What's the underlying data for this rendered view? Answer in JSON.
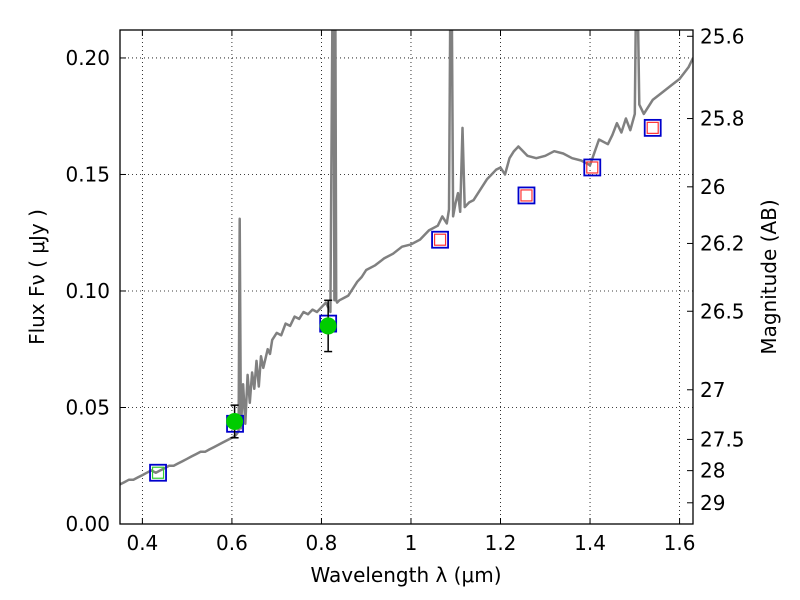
{
  "chart_data": {
    "type": "line",
    "xlabel": "Wavelength  λ (μm)",
    "ylabel": "Flux  Fν  ( μJy )",
    "ylabel_right": "Magnitude (AB)",
    "xlim": [
      0.35,
      1.63
    ],
    "ylim": [
      0.0,
      0.212
    ],
    "grid": true,
    "x_ticks": [
      0.4,
      0.6,
      0.8,
      1.0,
      1.2,
      1.4,
      1.6
    ],
    "x_tick_labels": [
      "0.4",
      "0.6",
      "0.8",
      "1",
      "1.2",
      "1.4",
      "1.6"
    ],
    "y_ticks": [
      0.0,
      0.05,
      0.1,
      0.15,
      0.2
    ],
    "y_tick_labels": [
      "0.00",
      "0.05",
      "0.10",
      "0.15",
      "0.20"
    ],
    "right_ticks": [
      {
        "label": "25.6",
        "flux": 0.2093
      },
      {
        "label": "25.8",
        "flux": 0.174
      },
      {
        "label": "26",
        "flux": 0.1447
      },
      {
        "label": "26.2",
        "flux": 0.1204
      },
      {
        "label": "26.5",
        "flux": 0.0913
      },
      {
        "label": "27",
        "flux": 0.0576
      },
      {
        "label": "27.5",
        "flux": 0.0363
      },
      {
        "label": "28",
        "flux": 0.0229
      },
      {
        "label": "29",
        "flux": 0.0091
      }
    ],
    "series": [
      {
        "style": "model-spectrum",
        "color": "#808080",
        "x": [
          0.35,
          0.36,
          0.37,
          0.38,
          0.39,
          0.4,
          0.41,
          0.42,
          0.43,
          0.44,
          0.45,
          0.46,
          0.47,
          0.48,
          0.49,
          0.5,
          0.51,
          0.52,
          0.53,
          0.54,
          0.55,
          0.56,
          0.57,
          0.58,
          0.59,
          0.6,
          0.608,
          0.612,
          0.615,
          0.6175,
          0.62,
          0.625,
          0.63,
          0.635,
          0.64,
          0.645,
          0.65,
          0.655,
          0.66,
          0.665,
          0.67,
          0.68,
          0.685,
          0.69,
          0.7,
          0.71,
          0.72,
          0.73,
          0.74,
          0.75,
          0.76,
          0.77,
          0.78,
          0.79,
          0.8,
          0.81,
          0.82,
          0.825,
          0.827,
          0.829,
          0.831,
          0.833,
          0.835,
          0.84,
          0.85,
          0.86,
          0.87,
          0.88,
          0.89,
          0.9,
          0.92,
          0.94,
          0.96,
          0.98,
          1.0,
          1.02,
          1.04,
          1.06,
          1.07,
          1.08,
          1.085,
          1.088,
          1.091,
          1.094,
          1.1,
          1.105,
          1.11,
          1.115,
          1.12,
          1.13,
          1.14,
          1.15,
          1.16,
          1.17,
          1.18,
          1.19,
          1.2,
          1.21,
          1.22,
          1.23,
          1.24,
          1.26,
          1.28,
          1.3,
          1.32,
          1.34,
          1.36,
          1.38,
          1.4,
          1.42,
          1.44,
          1.45,
          1.46,
          1.47,
          1.48,
          1.49,
          1.5,
          1.503,
          1.506,
          1.51,
          1.52,
          1.54,
          1.56,
          1.58,
          1.6,
          1.62,
          1.63
        ],
        "y": [
          0.017,
          0.018,
          0.019,
          0.019,
          0.02,
          0.021,
          0.022,
          0.023,
          0.022,
          0.023,
          0.024,
          0.025,
          0.025,
          0.026,
          0.027,
          0.028,
          0.029,
          0.03,
          0.031,
          0.031,
          0.032,
          0.033,
          0.034,
          0.035,
          0.036,
          0.037,
          0.038,
          0.039,
          0.04,
          0.131,
          0.041,
          0.06,
          0.043,
          0.064,
          0.052,
          0.065,
          0.058,
          0.07,
          0.059,
          0.072,
          0.067,
          0.075,
          0.073,
          0.079,
          0.082,
          0.081,
          0.086,
          0.085,
          0.089,
          0.088,
          0.091,
          0.09,
          0.092,
          0.091,
          0.093,
          0.095,
          0.091,
          0.23,
          0.23,
          0.096,
          0.23,
          0.096,
          0.095,
          0.096,
          0.097,
          0.098,
          0.101,
          0.104,
          0.106,
          0.109,
          0.111,
          0.114,
          0.116,
          0.119,
          0.12,
          0.122,
          0.126,
          0.128,
          0.132,
          0.129,
          0.135,
          0.23,
          0.23,
          0.132,
          0.138,
          0.142,
          0.134,
          0.17,
          0.136,
          0.138,
          0.139,
          0.142,
          0.145,
          0.148,
          0.15,
          0.152,
          0.153,
          0.15,
          0.157,
          0.16,
          0.162,
          0.158,
          0.157,
          0.158,
          0.16,
          0.159,
          0.157,
          0.156,
          0.154,
          0.165,
          0.163,
          0.167,
          0.172,
          0.168,
          0.174,
          0.169,
          0.176,
          0.23,
          0.23,
          0.18,
          0.176,
          0.182,
          0.185,
          0.188,
          0.191,
          0.196,
          0.2
        ]
      },
      {
        "style": "blue-squares",
        "color": "#0000cc",
        "x": [
          0.435,
          0.607,
          0.815,
          1.065,
          1.258,
          1.405,
          1.54
        ],
        "y": [
          0.022,
          0.043,
          0.086,
          0.122,
          0.141,
          0.153,
          0.17
        ]
      },
      {
        "style": "red-squares",
        "color": "#ff3333",
        "x": [
          1.065,
          1.258,
          1.405,
          1.54
        ],
        "y": [
          0.122,
          0.141,
          0.153,
          0.17
        ]
      },
      {
        "style": "green-square",
        "color": "#33cc33",
        "x": [
          0.435
        ],
        "y": [
          0.022
        ]
      },
      {
        "style": "green-points-errorbars",
        "color": "#00cc00",
        "x": [
          0.606,
          0.815
        ],
        "y": [
          0.044,
          0.085
        ],
        "yerr": [
          0.007,
          0.011
        ]
      }
    ]
  }
}
